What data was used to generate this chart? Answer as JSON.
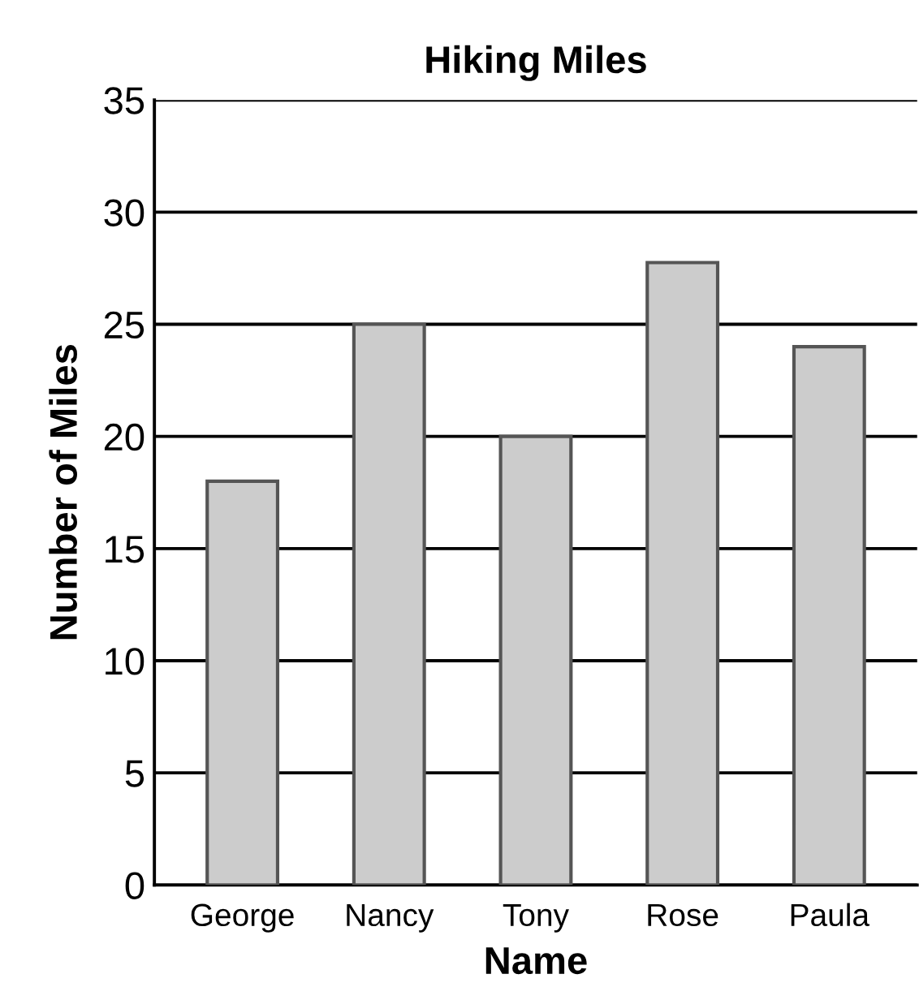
{
  "chart_data": {
    "type": "bar",
    "title": "Hiking Miles",
    "xlabel": "Name",
    "ylabel": "Number of Miles",
    "categories": [
      "George",
      "Nancy",
      "Tony",
      "Rose",
      "Paula"
    ],
    "values": [
      18,
      25,
      20,
      27.75,
      24
    ],
    "color": "#cccccc",
    "ylim": [
      0,
      35
    ],
    "yticks": [
      0,
      5,
      10,
      15,
      20,
      25,
      30,
      35
    ],
    "grid": "y",
    "legend": false
  }
}
